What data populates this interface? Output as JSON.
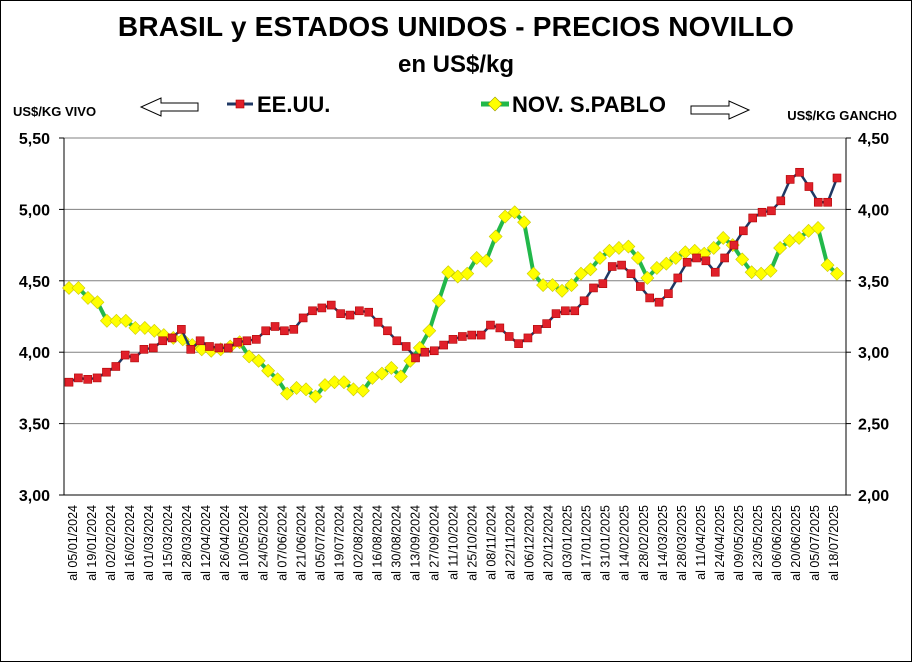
{
  "chart_data": {
    "type": "line",
    "title": "BRASIL y ESTADOS UNIDOS - PRECIOS NOVILLO",
    "subtitle": "en US$/kg",
    "ylabel_left": "US$/KG VIVO",
    "ylabel_right": "US$/KG GANCHO",
    "ylim_left": [
      3.0,
      5.5
    ],
    "ylim_right": [
      2.0,
      4.5
    ],
    "yticks_left": [
      "3,00",
      "3,50",
      "4,00",
      "4,50",
      "5,00",
      "5,50"
    ],
    "yticks_right": [
      "2,00",
      "2,50",
      "3,00",
      "3,50",
      "4,00",
      "4,50"
    ],
    "grid": "horizontal",
    "legend_position": "top",
    "x_tick_labels": [
      "al 05/01/2024",
      "al 19/01/2024",
      "al 02/02/2024",
      "al 16/02/2024",
      "al 01/03/2024",
      "al 15/03/2024",
      "al 28/03/2024",
      "al 12/04/2024",
      "al 26/04/2024",
      "al 10/05/2024",
      "al 24/05/2024",
      "al 07/06/2024",
      "al 21/06/2024",
      "al 05/07/2024",
      "al 19/07/2024",
      "al 02/08/2024",
      "al 16/08/2024",
      "al 30/08/2024",
      "al 13/09/2024",
      "al 27/09/2024",
      "al 11/10/2024",
      "al 25/10/2024",
      "al 08/11/2024",
      "al 22/11/2024",
      "al 06/12/2024",
      "al 20/12/2024",
      "al 03/01/2025",
      "al 17/01/2025",
      "al 31/01/2025",
      "al 14/02/2025",
      "al 28/02/2025",
      "al 14/03/2025",
      "al 28/03/2025",
      "al 11/04/2025",
      "al 24/04/2025",
      "al 09/05/2025",
      "al 23/05/2025",
      "al 06/06/2025",
      "al 20/06/2025",
      "al 05/07/2025",
      "al 18/07/2025"
    ],
    "series": [
      {
        "name": "EE.UU.",
        "axis": "left",
        "color": "#1f3864",
        "marker_color": "#e0202a",
        "values": [
          3.79,
          3.82,
          3.81,
          3.82,
          3.86,
          3.9,
          3.98,
          3.96,
          4.02,
          4.03,
          4.08,
          4.1,
          4.16,
          4.02,
          4.08,
          4.04,
          4.03,
          4.03,
          4.07,
          4.08,
          4.09,
          4.15,
          4.18,
          4.15,
          4.16,
          4.24,
          4.29,
          4.31,
          4.33,
          4.27,
          4.26,
          4.29,
          4.28,
          4.21,
          4.15,
          4.08,
          4.04,
          3.96,
          4.0,
          4.01,
          4.05,
          4.09,
          4.11,
          4.12,
          4.12,
          4.19,
          4.17,
          4.11,
          4.06,
          4.1,
          4.16,
          4.2,
          4.27,
          4.29,
          4.29,
          4.36,
          4.45,
          4.48,
          4.6,
          4.61,
          4.55,
          4.46,
          4.38,
          4.35,
          4.41,
          4.52,
          4.63,
          4.66,
          4.64,
          4.56,
          4.66,
          4.75,
          4.85,
          4.94,
          4.98,
          4.99,
          5.06,
          5.21,
          5.26,
          5.16,
          5.05,
          5.05,
          5.22
        ]
      },
      {
        "name": "NOV. S.PABLO",
        "axis": "right",
        "color": "#22b84a",
        "marker_color": "#ffff00",
        "values": [
          3.45,
          3.45,
          3.38,
          3.35,
          3.22,
          3.22,
          3.22,
          3.17,
          3.17,
          3.15,
          3.12,
          3.1,
          3.09,
          3.05,
          3.02,
          3.01,
          3.02,
          3.04,
          3.07,
          2.97,
          2.94,
          2.87,
          2.81,
          2.71,
          2.75,
          2.74,
          2.69,
          2.77,
          2.79,
          2.79,
          2.74,
          2.73,
          2.82,
          2.85,
          2.89,
          2.83,
          2.94,
          3.03,
          3.15,
          3.36,
          3.56,
          3.53,
          3.55,
          3.66,
          3.64,
          3.81,
          3.95,
          3.98,
          3.91,
          3.55,
          3.47,
          3.47,
          3.43,
          3.47,
          3.55,
          3.58,
          3.66,
          3.71,
          3.73,
          3.74,
          3.66,
          3.52,
          3.59,
          3.62,
          3.66,
          3.7,
          3.71,
          3.69,
          3.73,
          3.8,
          3.75,
          3.65,
          3.56,
          3.55,
          3.57,
          3.73,
          3.78,
          3.8,
          3.85,
          3.87,
          3.61,
          3.55
        ]
      }
    ]
  }
}
